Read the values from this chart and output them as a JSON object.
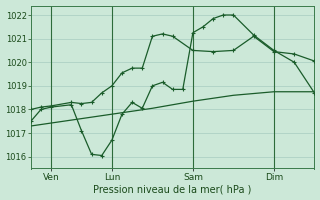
{
  "xlabel": "Pression niveau de la mer( hPa )",
  "ylim": [
    1015.5,
    1022.4
  ],
  "yticks": [
    1016,
    1017,
    1018,
    1019,
    1020,
    1021,
    1022
  ],
  "background_color": "#cce8d8",
  "grid_color": "#b8d4c0",
  "line_color": "#1a5c2a",
  "vline_color": "#2d6b3a",
  "xtick_labels": [
    "Ven",
    "Lun",
    "Sam",
    "Dim"
  ],
  "xtick_positions": [
    1,
    4,
    8,
    12
  ],
  "xlim": [
    0,
    14
  ],
  "line1_x": [
    0,
    0.5,
    1,
    2,
    2.5,
    3.0,
    3.5,
    4,
    4.5,
    5,
    5.5,
    6,
    6.5,
    7,
    7.5,
    8,
    8.5,
    9,
    9.5,
    10,
    11,
    12,
    13,
    14
  ],
  "line1_y": [
    1017.5,
    1018.0,
    1018.1,
    1018.2,
    1017.1,
    1016.1,
    1016.05,
    1016.7,
    1017.8,
    1018.3,
    1018.05,
    1019.0,
    1019.15,
    1018.85,
    1018.85,
    1021.25,
    1021.5,
    1021.85,
    1022.0,
    1022.0,
    1021.15,
    1020.5,
    1020.0,
    1018.7
  ],
  "line2_x": [
    0,
    0.5,
    1,
    2,
    2.5,
    3,
    3.5,
    4,
    4.5,
    5,
    5.5,
    6,
    6.5,
    7,
    8,
    9,
    10,
    11,
    12,
    13,
    14
  ],
  "line2_y": [
    1018.0,
    1018.1,
    1018.15,
    1018.3,
    1018.25,
    1018.3,
    1018.7,
    1019.0,
    1019.55,
    1019.75,
    1019.75,
    1021.1,
    1021.2,
    1021.1,
    1020.5,
    1020.45,
    1020.5,
    1021.1,
    1020.45,
    1020.35,
    1020.05
  ],
  "line3_x": [
    0,
    2,
    4,
    6,
    8,
    10,
    12,
    14
  ],
  "line3_y": [
    1017.3,
    1017.55,
    1017.8,
    1018.05,
    1018.35,
    1018.6,
    1018.75,
    1018.75
  ],
  "vline_positions": [
    1,
    4,
    8,
    12
  ]
}
